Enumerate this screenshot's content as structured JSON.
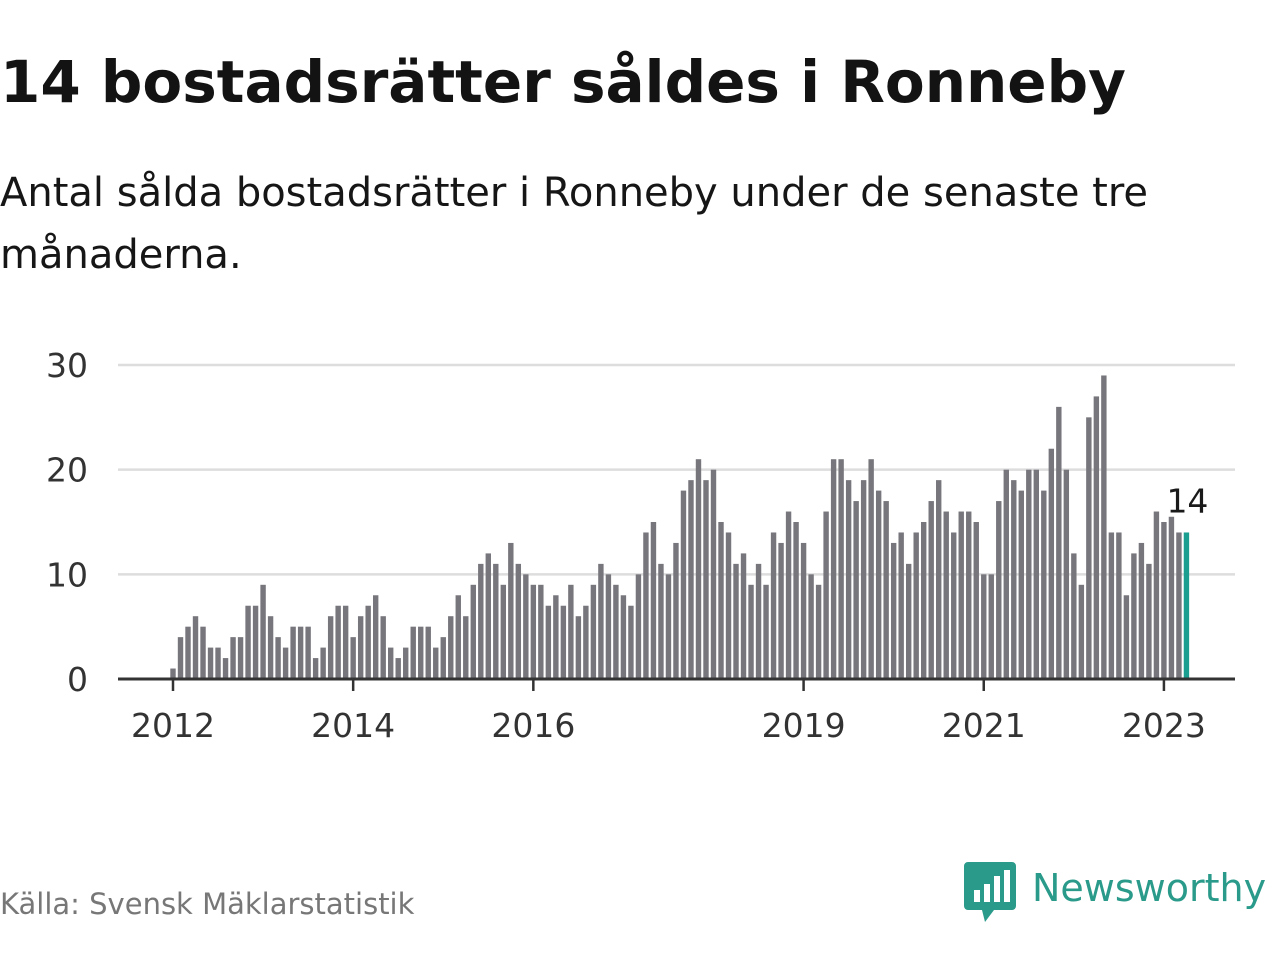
{
  "header": {
    "title": "14 bostadsrätter såldes i Ronneby",
    "subtitle": "Antal sålda bostadsrätter i Ronneby under de senaste tre månaderna."
  },
  "footer": {
    "source": "Källa: Svensk Mäklarstatistik",
    "brand": "Newsworthy",
    "brand_icon": "bar-chart-speech-bubble-icon"
  },
  "colors": {
    "bar": "#77767c",
    "highlight": "#1a9e8f",
    "grid": "#dddddd",
    "axis": "#333333",
    "brand": "#2a9a8a"
  },
  "chart_data": {
    "type": "bar",
    "title": "",
    "xlabel": "",
    "ylabel": "",
    "ylim": [
      0,
      30
    ],
    "yticks": [
      "0",
      "10",
      "20",
      "30"
    ],
    "xticks": [
      "2012",
      "2014",
      "2016",
      "2019",
      "2021",
      "2023"
    ],
    "grid": true,
    "highlight_label": "14",
    "values": [
      1,
      4,
      5,
      6,
      5,
      3,
      3,
      2,
      4,
      4,
      7,
      7,
      9,
      6,
      4,
      3,
      5,
      5,
      5,
      2,
      3,
      6,
      7,
      7,
      4,
      6,
      7,
      8,
      6,
      3,
      2,
      3,
      5,
      5,
      5,
      3,
      4,
      6,
      8,
      6,
      9,
      11,
      12,
      11,
      9,
      13,
      11,
      10,
      9,
      9,
      7,
      8,
      7,
      9,
      6,
      7,
      9,
      11,
      10,
      9,
      8,
      7,
      10,
      14,
      15,
      11,
      10,
      13,
      18,
      19,
      21,
      19,
      20,
      15,
      14,
      11,
      12,
      9,
      11,
      9,
      14,
      13,
      16,
      15,
      13,
      10,
      9,
      16,
      21,
      21,
      19,
      17,
      19,
      21,
      18,
      17,
      13,
      14,
      11,
      14,
      15,
      17,
      19,
      16,
      14,
      16,
      16,
      15,
      10,
      10,
      17,
      20,
      19,
      18,
      20,
      20,
      18,
      22,
      26,
      20,
      12,
      9,
      25,
      27,
      29,
      14,
      14,
      8,
      12,
      13,
      11,
      16,
      15,
      15.5,
      14,
      14
    ]
  }
}
